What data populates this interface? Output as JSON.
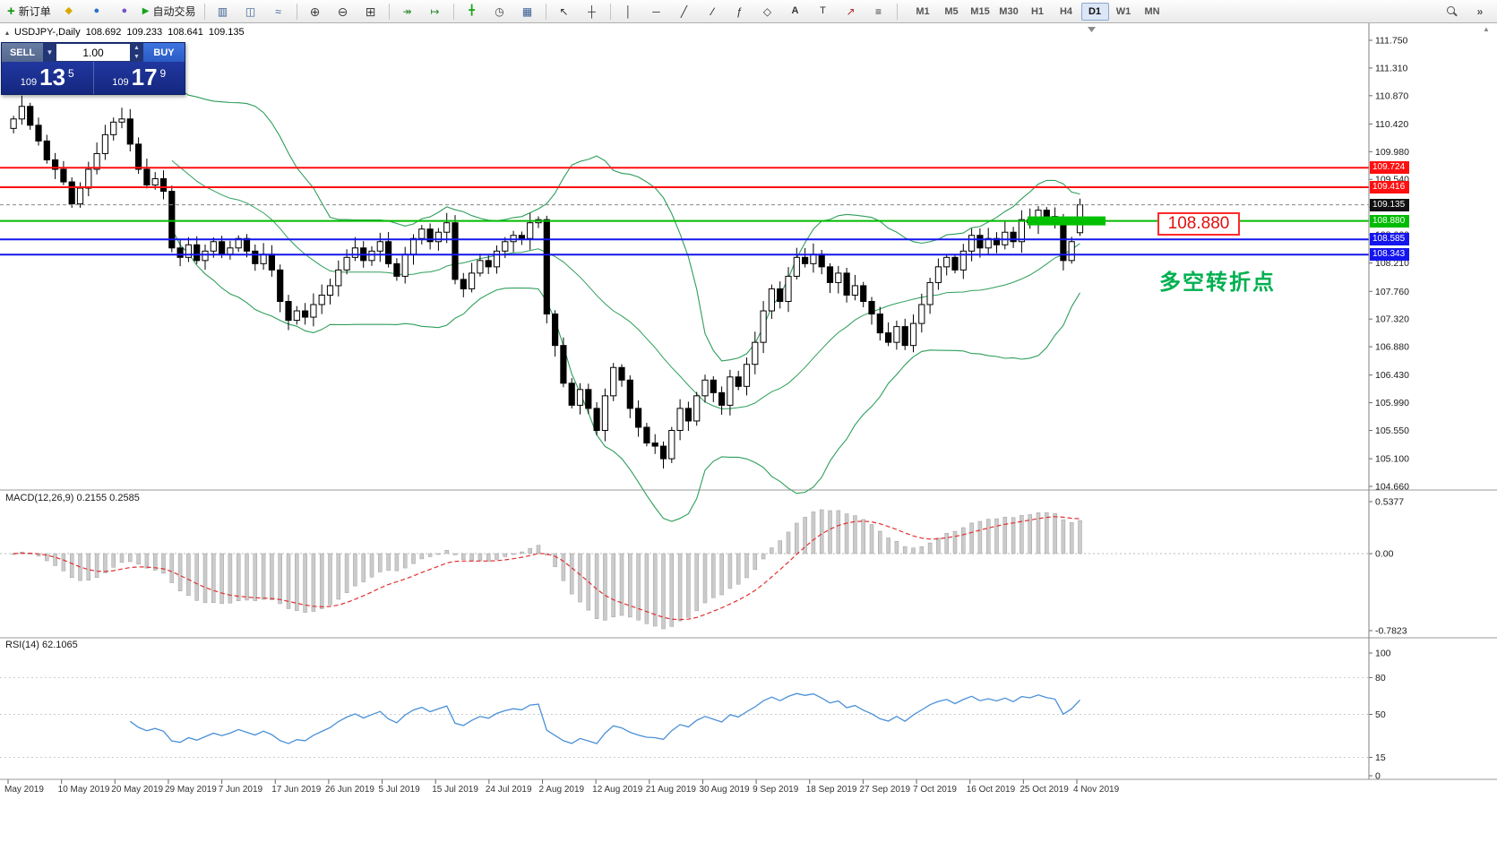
{
  "toolbar": {
    "new_order_label": "新订单",
    "auto_trading_label": "自动交易",
    "timeframes": [
      "M1",
      "M5",
      "M15",
      "M30",
      "H1",
      "H4",
      "D1",
      "W1",
      "MN"
    ],
    "active_timeframe": "D1",
    "overflow_chevron": "»",
    "collapse_arrow": "▴",
    "scroll_up_arrow": "▲"
  },
  "chart_header": {
    "symbol": "USDJPY-,Daily",
    "open": "108.692",
    "high": "109.233",
    "low": "108.641",
    "close": "109.135"
  },
  "trade_panel": {
    "sell_label": "SELL",
    "buy_label": "BUY",
    "volume": "1.00",
    "sell_prefix": "109",
    "sell_big": "13",
    "sell_sup": "5",
    "buy_prefix": "109",
    "buy_big": "17",
    "buy_sup": "9"
  },
  "main_chart": {
    "y_axis": [
      "111.750",
      "111.310",
      "110.870",
      "110.420",
      "109.980",
      "109.540",
      "109.100",
      "108.660",
      "108.210",
      "107.760",
      "107.320",
      "106.880",
      "106.430",
      "105.990",
      "105.550",
      "105.100",
      "104.660"
    ],
    "levels": [
      {
        "label": "109.724",
        "value": 109.724,
        "color": "#FF1010",
        "style": "line"
      },
      {
        "label": "109.416",
        "value": 109.416,
        "color": "#FF1010",
        "style": "line"
      },
      {
        "label": "109.135",
        "value": 109.135,
        "color": "#111111",
        "style": "bid"
      },
      {
        "label": "108.880",
        "value": 108.88,
        "color": "#00BB00",
        "style": "line",
        "zone": true
      },
      {
        "label": "108.585",
        "value": 108.585,
        "color": "#1515EE",
        "style": "line"
      },
      {
        "label": "108.343",
        "value": 108.343,
        "color": "#1515EE",
        "style": "line"
      }
    ],
    "callout_text": "108.880",
    "annotation_text": "多空转折点",
    "zone_color": "#00C000"
  },
  "macd_panel": {
    "label": "MACD(12,26,9) 0.2155 0.2585",
    "axis": [
      "0.5377",
      "0.00",
      "-0.7823"
    ]
  },
  "rsi_panel": {
    "label": "RSI(14) 62.1065",
    "axis": [
      "100",
      "80",
      "50",
      "15",
      "0"
    ]
  },
  "time_axis": [
    "May 2019",
    "10 May 2019",
    "20 May 2019",
    "29 May 2019",
    "7 Jun 2019",
    "17 Jun 2019",
    "26 Jun 2019",
    "5 Jul 2019",
    "15 Jul 2019",
    "24 Jul 2019",
    "2 Aug 2019",
    "12 Aug 2019",
    "21 Aug 2019",
    "30 Aug 2019",
    "9 Sep 2019",
    "18 Sep 2019",
    "27 Sep 2019",
    "7 Oct 2019",
    "16 Oct 2019",
    "25 Oct 2019",
    "4 Nov 2019"
  ],
  "chart_data": {
    "type": "candlestick",
    "symbol": "USDJPY",
    "timeframe": "Daily",
    "price_range": [
      104.66,
      111.75
    ],
    "closes": [
      110.5,
      110.7,
      110.4,
      110.15,
      109.85,
      109.7,
      109.5,
      109.15,
      109.4,
      109.7,
      109.95,
      110.25,
      110.45,
      110.5,
      110.1,
      109.7,
      109.45,
      109.55,
      109.35,
      108.45,
      108.3,
      108.5,
      108.25,
      108.4,
      108.55,
      108.35,
      108.45,
      108.6,
      108.4,
      108.2,
      108.35,
      108.1,
      107.6,
      107.3,
      107.45,
      107.35,
      107.55,
      107.7,
      107.85,
      108.1,
      108.3,
      108.45,
      108.25,
      108.4,
      108.55,
      108.2,
      108.0,
      108.35,
      108.6,
      108.75,
      108.55,
      108.7,
      108.85,
      107.95,
      107.8,
      108.05,
      108.25,
      108.15,
      108.4,
      108.55,
      108.65,
      108.6,
      108.85,
      108.9,
      107.4,
      106.9,
      106.3,
      105.95,
      106.2,
      105.9,
      105.55,
      106.1,
      106.55,
      106.35,
      105.9,
      105.6,
      105.35,
      105.3,
      105.1,
      105.55,
      105.9,
      105.7,
      106.1,
      106.35,
      106.15,
      105.95,
      106.4,
      106.25,
      106.6,
      106.95,
      107.45,
      107.8,
      107.6,
      108.0,
      108.3,
      108.2,
      108.35,
      108.15,
      107.9,
      108.05,
      107.7,
      107.85,
      107.6,
      107.4,
      107.1,
      106.95,
      107.2,
      106.9,
      107.25,
      107.55,
      107.9,
      108.15,
      108.3,
      108.1,
      108.4,
      108.65,
      108.45,
      108.6,
      108.5,
      108.7,
      108.55,
      108.9,
      108.85,
      109.05,
      108.95,
      108.9,
      108.25,
      108.55,
      109.135
    ],
    "last_candle": {
      "o": 108.692,
      "h": 109.233,
      "l": 108.641,
      "c": 109.135
    },
    "indicators": {
      "bollinger": {
        "period": 20,
        "deviation": 2
      },
      "macd": {
        "fast": 12,
        "slow": 26,
        "signal": 9
      },
      "rsi": {
        "period": 14
      }
    }
  }
}
